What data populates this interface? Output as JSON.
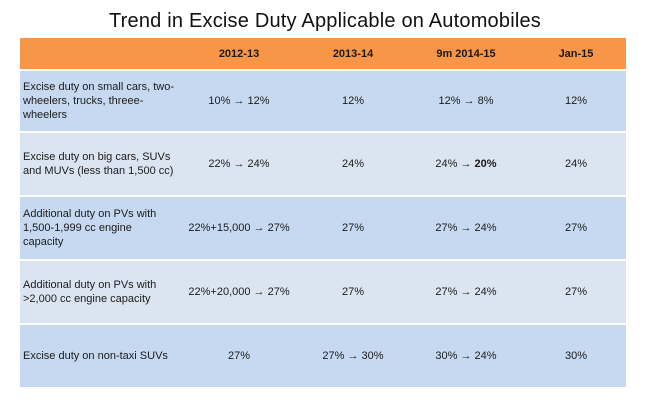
{
  "title": "Trend in Excise Duty Applicable on Automobiles",
  "columns": [
    "",
    "2012-13",
    "2013-14",
    "9m 2014-15",
    "Jan-15"
  ],
  "rows": [
    {
      "label": "Excise duty on small cars, two-wheelers, trucks, threee-wheelers",
      "values": [
        "10% → 12%",
        "12%",
        "12% → 8%",
        "12%"
      ]
    },
    {
      "label": "Excise duty on big cars, SUVs and MUVs (less than 1,500 cc)",
      "values": [
        "22% → 24%",
        "24%",
        "24% →",
        "24%"
      ],
      "highlight": "20%"
    },
    {
      "label": "Additional duty on PVs with 1,500-1,999 cc engine capacity",
      "values": [
        "22%+15,000 → 27%",
        "27%",
        "27% → 24%",
        "27%"
      ]
    },
    {
      "label": "Additional duty on PVs with >2,000 cc engine capacity",
      "values": [
        "22%+20,000 → 27%",
        "27%",
        "27% → 24%",
        "27%"
      ]
    },
    {
      "label": "Excise duty on non-taxi SUVs",
      "values": [
        "27%",
        "27% → 30%",
        "30% → 24%",
        "30%"
      ]
    }
  ],
  "colors": {
    "header": "#f79646",
    "row_dark": "#c6d9f1",
    "row_light": "#dbe5f1"
  }
}
